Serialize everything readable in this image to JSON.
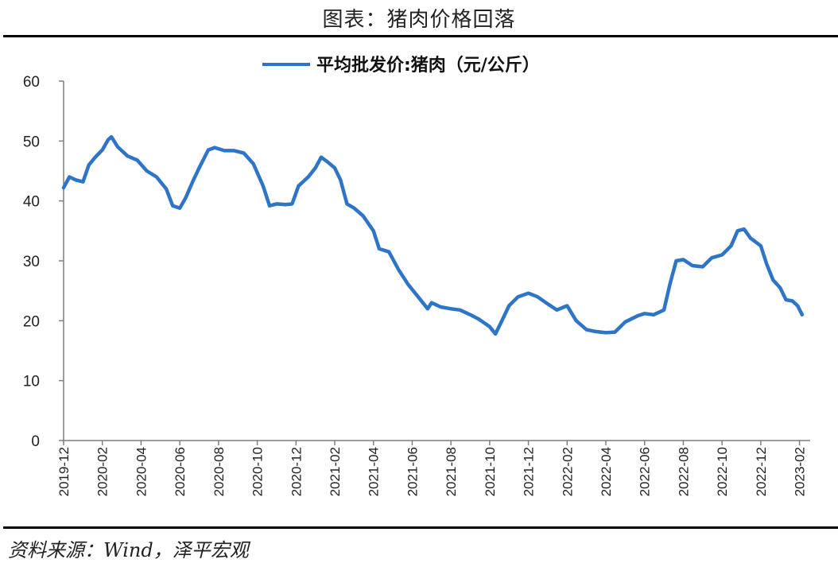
{
  "header": {
    "title": "图表：猪肉价格回落"
  },
  "footer": {
    "source": "资料来源：Wind，泽平宏观"
  },
  "chart_data": {
    "type": "line",
    "title": "",
    "xlabel": "",
    "ylabel": "",
    "ylim": [
      0,
      60
    ],
    "yticks": [
      "0",
      "10",
      "20",
      "30",
      "40",
      "50",
      "60"
    ],
    "x_tick_labels": [
      "2019-12",
      "2020-02",
      "2020-04",
      "2020-06",
      "2020-08",
      "2020-10",
      "2020-12",
      "2021-02",
      "2021-04",
      "2021-06",
      "2021-08",
      "2021-10",
      "2021-12",
      "2022-02",
      "2022-04",
      "2022-06",
      "2022-08",
      "2022-10",
      "2022-12",
      "2023-02"
    ],
    "grid": false,
    "legend_position": "top",
    "series": [
      {
        "name": "平均批发价:猪肉（元/公斤）",
        "color": "#2e75c8",
        "points": [
          [
            "2019-12-01",
            42.2
          ],
          [
            "2019-12-10",
            44.0
          ],
          [
            "2019-12-20",
            43.5
          ],
          [
            "2020-01-01",
            43.2
          ],
          [
            "2020-01-10",
            46.0
          ],
          [
            "2020-01-20",
            47.3
          ],
          [
            "2020-02-01",
            48.5
          ],
          [
            "2020-02-10",
            50.2
          ],
          [
            "2020-02-15",
            50.7
          ],
          [
            "2020-02-25",
            49.0
          ],
          [
            "2020-03-10",
            47.5
          ],
          [
            "2020-03-25",
            46.8
          ],
          [
            "2020-04-10",
            45.0
          ],
          [
            "2020-04-25",
            44.0
          ],
          [
            "2020-05-10",
            42.0
          ],
          [
            "2020-05-20",
            39.2
          ],
          [
            "2020-06-01",
            38.8
          ],
          [
            "2020-06-10",
            40.5
          ],
          [
            "2020-06-20",
            43.0
          ],
          [
            "2020-07-01",
            45.5
          ],
          [
            "2020-07-15",
            48.5
          ],
          [
            "2020-07-25",
            48.9
          ],
          [
            "2020-08-10",
            48.4
          ],
          [
            "2020-08-25",
            48.4
          ],
          [
            "2020-09-10",
            48.0
          ],
          [
            "2020-09-25",
            46.2
          ],
          [
            "2020-10-10",
            42.5
          ],
          [
            "2020-10-20",
            39.2
          ],
          [
            "2020-11-01",
            39.5
          ],
          [
            "2020-11-15",
            39.4
          ],
          [
            "2020-11-25",
            39.5
          ],
          [
            "2020-12-05",
            42.5
          ],
          [
            "2020-12-20",
            44.0
          ],
          [
            "2021-01-01",
            45.5
          ],
          [
            "2021-01-10",
            47.3
          ],
          [
            "2021-01-20",
            46.5
          ],
          [
            "2021-02-01",
            45.5
          ],
          [
            "2021-02-10",
            43.5
          ],
          [
            "2021-02-20",
            39.5
          ],
          [
            "2021-03-01",
            38.8
          ],
          [
            "2021-03-15",
            37.5
          ],
          [
            "2021-04-01",
            35.0
          ],
          [
            "2021-04-10",
            32.0
          ],
          [
            "2021-04-25",
            31.5
          ],
          [
            "2021-05-10",
            28.5
          ],
          [
            "2021-05-25",
            26.0
          ],
          [
            "2021-06-10",
            24.0
          ],
          [
            "2021-06-25",
            22.0
          ],
          [
            "2021-07-01",
            23.0
          ],
          [
            "2021-07-15",
            22.3
          ],
          [
            "2021-08-01",
            22.0
          ],
          [
            "2021-08-15",
            21.8
          ],
          [
            "2021-09-01",
            21.0
          ],
          [
            "2021-09-15",
            20.2
          ],
          [
            "2021-10-01",
            19.0
          ],
          [
            "2021-10-10",
            17.8
          ],
          [
            "2021-10-20",
            20.0
          ],
          [
            "2021-11-01",
            22.5
          ],
          [
            "2021-11-15",
            24.0
          ],
          [
            "2021-12-01",
            24.6
          ],
          [
            "2021-12-15",
            24.0
          ],
          [
            "2022-01-01",
            22.8
          ],
          [
            "2022-01-15",
            21.8
          ],
          [
            "2022-02-01",
            22.5
          ],
          [
            "2022-02-15",
            20.0
          ],
          [
            "2022-03-01",
            18.5
          ],
          [
            "2022-03-15",
            18.2
          ],
          [
            "2022-04-01",
            18.0
          ],
          [
            "2022-04-15",
            18.1
          ],
          [
            "2022-05-01",
            19.8
          ],
          [
            "2022-05-20",
            20.8
          ],
          [
            "2022-06-01",
            21.2
          ],
          [
            "2022-06-15",
            21.0
          ],
          [
            "2022-07-01",
            21.8
          ],
          [
            "2022-07-10",
            26.0
          ],
          [
            "2022-07-20",
            30.0
          ],
          [
            "2022-08-01",
            30.2
          ],
          [
            "2022-08-15",
            29.2
          ],
          [
            "2022-09-01",
            29.0
          ],
          [
            "2022-09-15",
            30.5
          ],
          [
            "2022-10-01",
            31.0
          ],
          [
            "2022-10-15",
            32.5
          ],
          [
            "2022-10-25",
            35.0
          ],
          [
            "2022-11-05",
            35.3
          ],
          [
            "2022-11-15",
            33.8
          ],
          [
            "2022-12-01",
            32.5
          ],
          [
            "2022-12-10",
            29.5
          ],
          [
            "2022-12-20",
            26.8
          ],
          [
            "2023-01-01",
            25.5
          ],
          [
            "2023-01-10",
            23.5
          ],
          [
            "2023-01-20",
            23.3
          ],
          [
            "2023-01-28",
            22.5
          ],
          [
            "2023-02-05",
            21.0
          ]
        ]
      }
    ]
  }
}
